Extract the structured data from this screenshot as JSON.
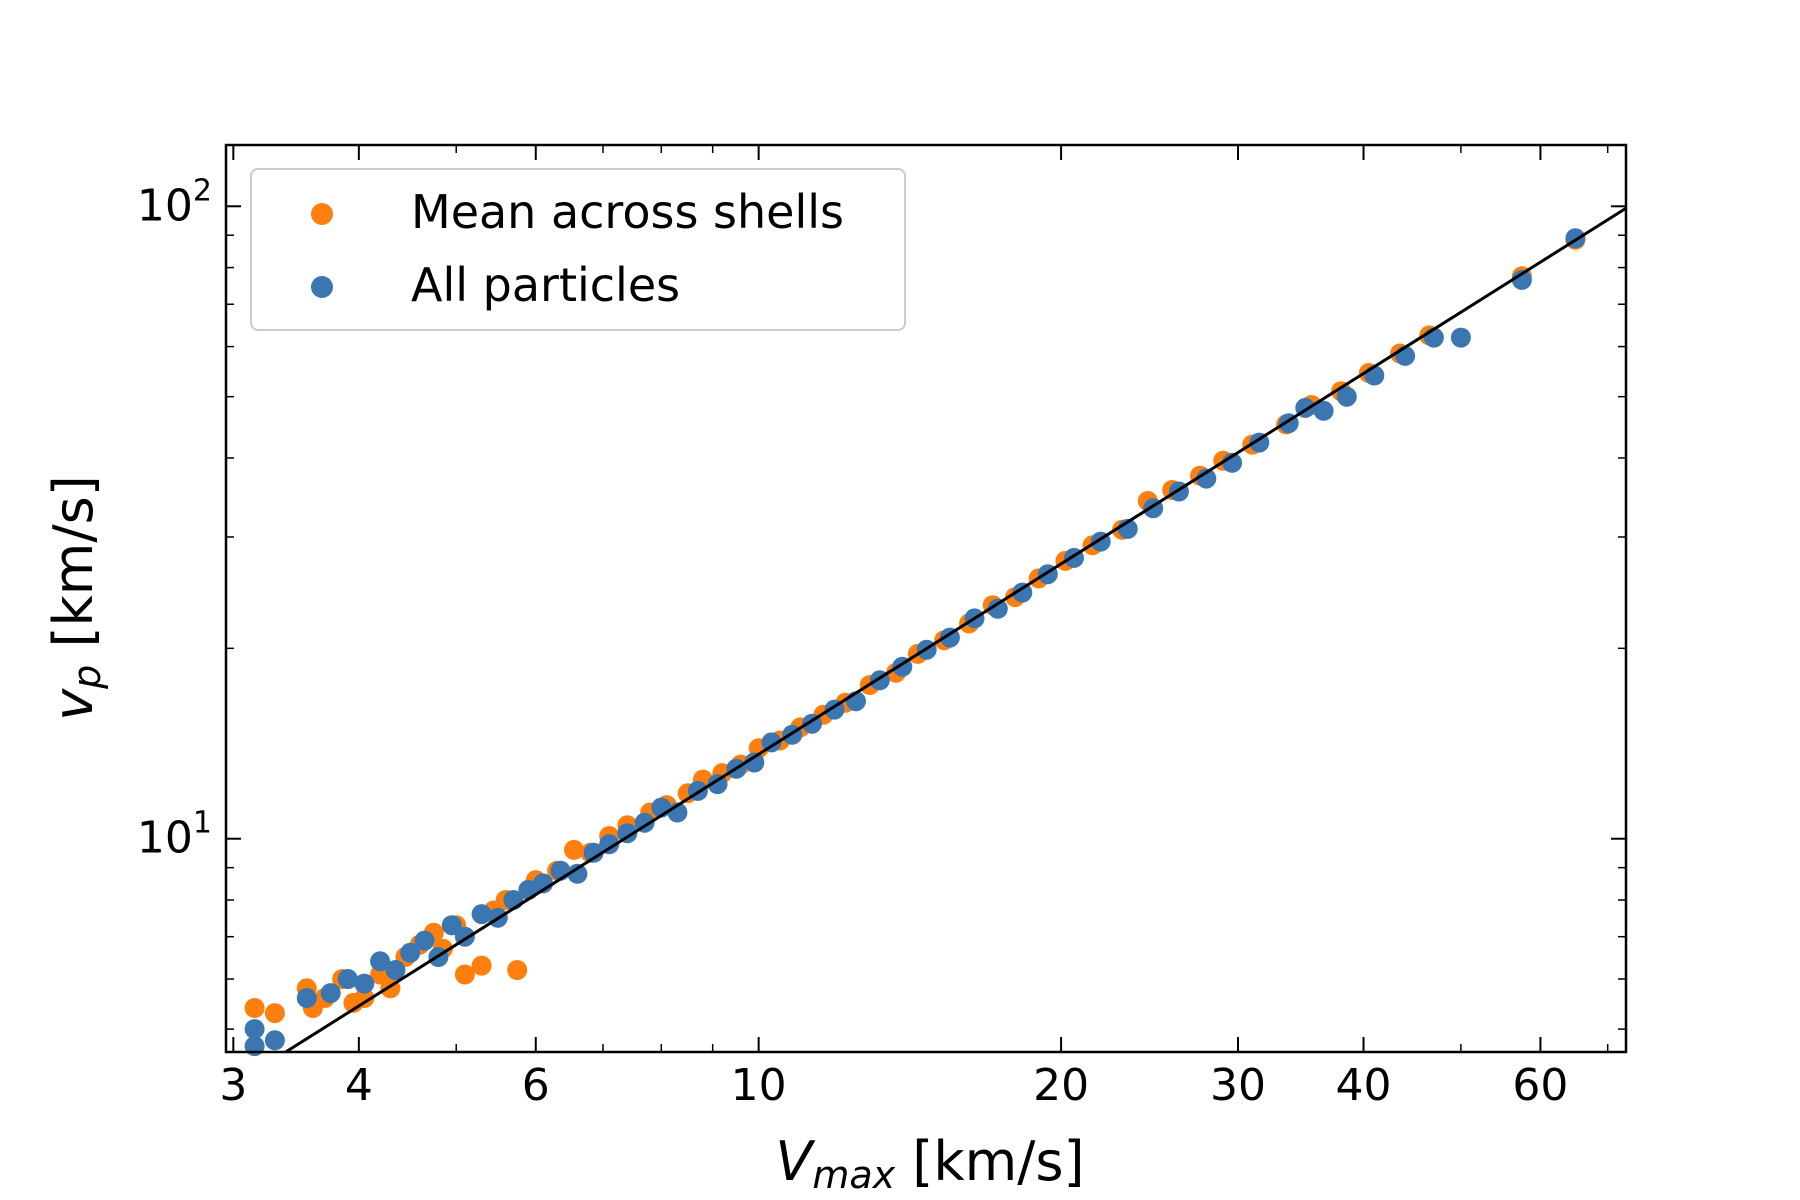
{
  "chart_data": {
    "type": "scatter",
    "xscale": "log",
    "yscale": "log",
    "xlim": [
      2.95,
      73
    ],
    "ylim": [
      4.6,
      125
    ],
    "xlabel_main": "V",
    "xlabel_sub": "max",
    "xlabel_unit": " [km/s]",
    "ylabel_main": "v",
    "ylabel_sub": "p",
    "ylabel_unit": " [km/s]",
    "x_ticks": [
      3,
      4,
      6,
      10,
      20,
      30,
      40,
      60
    ],
    "x_tick_labels": [
      "3",
      "4",
      "6",
      "10",
      "20",
      "30",
      "40",
      "60"
    ],
    "y_major_ticks": [
      10,
      100
    ],
    "y_tick_labels": [
      {
        "base": "10",
        "exp": "1"
      },
      {
        "base": "10",
        "exp": "2"
      }
    ],
    "reference_line": {
      "slope": 1.36,
      "description": "one-to-one relation"
    },
    "legend_position": "upper-left",
    "colors": {
      "mean_across_shells": "#ff7f0e",
      "all_particles": "#3b76b0",
      "line": "#000000"
    },
    "series": [
      {
        "name": "Mean across shells",
        "color": "#ff7f0e",
        "points": [
          [
            3.15,
            4.5
          ],
          [
            3.15,
            5.4
          ],
          [
            3.3,
            5.3
          ],
          [
            3.55,
            5.8
          ],
          [
            3.6,
            5.4
          ],
          [
            3.7,
            5.6
          ],
          [
            3.85,
            6.0
          ],
          [
            3.95,
            5.5
          ],
          [
            4.05,
            5.6
          ],
          [
            4.2,
            6.1
          ],
          [
            4.3,
            5.8
          ],
          [
            4.45,
            6.5
          ],
          [
            4.6,
            6.8
          ],
          [
            4.75,
            7.1
          ],
          [
            4.85,
            6.7
          ],
          [
            5.0,
            7.3
          ],
          [
            5.1,
            6.1
          ],
          [
            5.3,
            6.3
          ],
          [
            5.45,
            7.7
          ],
          [
            5.6,
            8.0
          ],
          [
            5.75,
            6.2
          ],
          [
            5.9,
            8.3
          ],
          [
            6.0,
            8.6
          ],
          [
            6.3,
            8.9
          ],
          [
            6.55,
            9.6
          ],
          [
            6.8,
            9.5
          ],
          [
            7.1,
            10.1
          ],
          [
            7.4,
            10.5
          ],
          [
            7.8,
            11.0
          ],
          [
            8.1,
            11.3
          ],
          [
            8.5,
            11.8
          ],
          [
            8.8,
            12.4
          ],
          [
            9.2,
            12.7
          ],
          [
            9.6,
            13.1
          ],
          [
            10.0,
            13.9
          ],
          [
            10.5,
            14.3
          ],
          [
            11.0,
            15.0
          ],
          [
            11.6,
            15.7
          ],
          [
            12.2,
            16.4
          ],
          [
            12.9,
            17.5
          ],
          [
            13.7,
            18.3
          ],
          [
            14.4,
            19.6
          ],
          [
            15.3,
            20.6
          ],
          [
            16.2,
            21.9
          ],
          [
            17.1,
            23.4
          ],
          [
            18.0,
            24.1
          ],
          [
            19.0,
            25.8
          ],
          [
            20.2,
            27.5
          ],
          [
            21.5,
            29.1
          ],
          [
            23.0,
            30.8
          ],
          [
            24.4,
            34.2
          ],
          [
            25.8,
            35.6
          ],
          [
            27.5,
            37.5
          ],
          [
            29.0,
            39.6
          ],
          [
            31.0,
            42.0
          ],
          [
            33.5,
            45.2
          ],
          [
            35.5,
            48.5
          ],
          [
            38.0,
            51.0
          ],
          [
            40.5,
            54.5
          ],
          [
            43.5,
            58.5
          ],
          [
            46.5,
            62.5
          ],
          [
            57.5,
            77.5
          ],
          [
            65.0,
            88.5
          ]
        ]
      },
      {
        "name": "All particles",
        "color": "#3b76b0",
        "points": [
          [
            3.15,
            4.7
          ],
          [
            3.15,
            5.0
          ],
          [
            3.3,
            4.8
          ],
          [
            3.55,
            5.6
          ],
          [
            3.75,
            5.7
          ],
          [
            3.9,
            6.0
          ],
          [
            4.05,
            5.9
          ],
          [
            4.2,
            6.4
          ],
          [
            4.35,
            6.2
          ],
          [
            4.5,
            6.6
          ],
          [
            4.65,
            6.9
          ],
          [
            4.8,
            6.5
          ],
          [
            4.95,
            7.3
          ],
          [
            5.1,
            7.0
          ],
          [
            5.3,
            7.6
          ],
          [
            5.5,
            7.5
          ],
          [
            5.7,
            8.0
          ],
          [
            5.9,
            8.3
          ],
          [
            6.1,
            8.5
          ],
          [
            6.35,
            8.9
          ],
          [
            6.6,
            8.8
          ],
          [
            6.85,
            9.5
          ],
          [
            7.1,
            9.8
          ],
          [
            7.4,
            10.2
          ],
          [
            7.7,
            10.6
          ],
          [
            8.0,
            11.2
          ],
          [
            8.3,
            11.0
          ],
          [
            8.7,
            11.9
          ],
          [
            9.1,
            12.2
          ],
          [
            9.5,
            12.9
          ],
          [
            9.9,
            13.2
          ],
          [
            10.3,
            14.2
          ],
          [
            10.8,
            14.6
          ],
          [
            11.3,
            15.2
          ],
          [
            11.9,
            16.0
          ],
          [
            12.5,
            16.5
          ],
          [
            13.2,
            17.8
          ],
          [
            13.9,
            18.7
          ],
          [
            14.7,
            19.9
          ],
          [
            15.5,
            20.8
          ],
          [
            16.4,
            22.3
          ],
          [
            17.3,
            23.1
          ],
          [
            18.3,
            24.5
          ],
          [
            19.4,
            26.2
          ],
          [
            20.6,
            27.8
          ],
          [
            21.9,
            29.5
          ],
          [
            23.3,
            30.9
          ],
          [
            24.7,
            33.3
          ],
          [
            26.2,
            35.4
          ],
          [
            27.9,
            37.1
          ],
          [
            29.6,
            39.3
          ],
          [
            31.5,
            42.3
          ],
          [
            33.7,
            45.4
          ],
          [
            35.0,
            48.0
          ],
          [
            36.5,
            47.5
          ],
          [
            38.5,
            50.0
          ],
          [
            41.0,
            54.0
          ],
          [
            44.0,
            58.0
          ],
          [
            47.0,
            62.0
          ],
          [
            50.0,
            62.0
          ],
          [
            57.5,
            76.5
          ],
          [
            65.0,
            89.0
          ]
        ]
      }
    ]
  },
  "legend": {
    "entries": [
      "Mean across shells",
      "All particles"
    ]
  }
}
